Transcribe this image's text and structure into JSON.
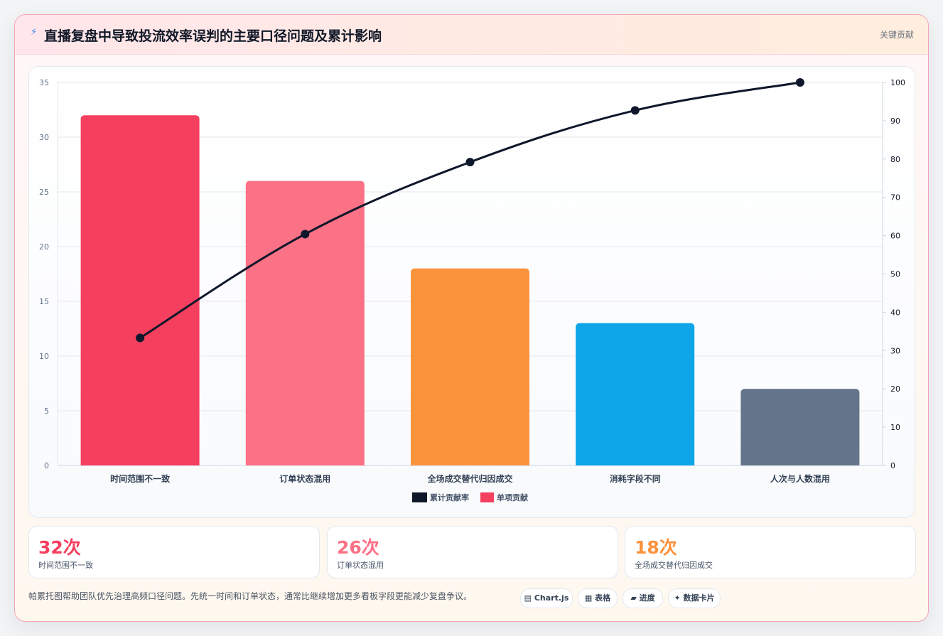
{
  "header": {
    "icon": "lightning-icon",
    "title": "直播复盘中导致投流效率误判的主要口径问题及累计影响",
    "link_label": "关键贡献"
  },
  "chart_data": {
    "type": "bar",
    "title": "",
    "categories": [
      "时间范围不一致",
      "订单状态混用",
      "全场成交替代归因成交",
      "消耗字段不同",
      "人次与人数混用"
    ],
    "series": [
      {
        "name": "单项贡献",
        "type": "bar",
        "axis": "left",
        "values": [
          32,
          26,
          18,
          13,
          7
        ],
        "colors": [
          "#f43f5e",
          "#fb7185",
          "#fb923c",
          "#0ea5e9",
          "#64748b"
        ]
      },
      {
        "name": "累计贡献率",
        "type": "line",
        "axis": "right",
        "values": [
          33.3,
          60.4,
          79.2,
          92.7,
          100
        ],
        "color": "#0f172a"
      }
    ],
    "y_left": {
      "min": 0,
      "max": 35,
      "ticks": [
        0,
        5,
        10,
        15,
        20,
        25,
        30,
        35
      ]
    },
    "y_right": {
      "min": 0,
      "max": 100,
      "ticks": [
        0,
        10,
        20,
        30,
        40,
        50,
        60,
        70,
        80,
        90,
        100
      ]
    },
    "grid": true,
    "legend": {
      "position": "bottom",
      "items": [
        "累计贡献率",
        "单项贡献"
      ]
    }
  },
  "stats": [
    {
      "value": "32次",
      "label": "时间范围不一致",
      "color": "#f43f5e"
    },
    {
      "value": "26次",
      "label": "订单状态混用",
      "color": "#fb7185"
    },
    {
      "value": "18次",
      "label": "全场成交替代归因成交",
      "color": "#fb923c"
    }
  ],
  "footer": {
    "text": "帕累托图帮助团队优先治理高频口径问题。先统一时间和订单状态，通常比继续增加更多看板字段更能减少复盘争议。",
    "chips": [
      {
        "icon": "chart-icon",
        "label": "Chart.js"
      },
      {
        "icon": "table-icon",
        "label": "表格"
      },
      {
        "icon": "progress-icon",
        "label": "进度"
      },
      {
        "icon": "card-icon",
        "label": "数据卡片"
      }
    ]
  }
}
